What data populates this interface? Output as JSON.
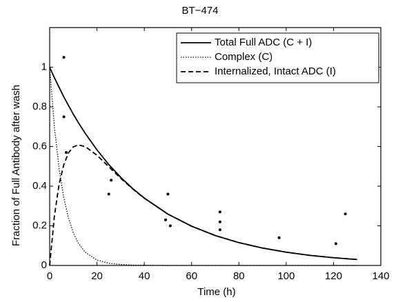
{
  "chart_data": {
    "type": "line",
    "title": "BT−474",
    "xlabel": "Time (h)",
    "ylabel": "Fraction of Full Antibody after wash",
    "x": [
      0,
      2,
      4,
      6,
      8,
      10,
      12,
      15,
      20,
      25,
      30,
      35,
      40,
      50,
      60,
      70,
      80,
      90,
      100,
      110,
      120,
      130
    ],
    "series": [
      {
        "name": "Total Full ADC (C + I)",
        "color": "#000000",
        "style": "solid",
        "values": [
          1,
          0.947,
          0.898,
          0.85,
          0.806,
          0.763,
          0.723,
          0.667,
          0.583,
          0.509,
          0.445,
          0.389,
          0.34,
          0.259,
          0.198,
          0.151,
          0.115,
          0.088,
          0.067,
          0.051,
          0.039,
          0.03
        ]
      },
      {
        "name": "Complex (C)",
        "color": "#000000",
        "style": "dotted",
        "values": [
          1,
          0.698,
          0.487,
          0.34,
          0.237,
          0.165,
          0.115,
          0.067,
          0.027,
          0.011,
          0.005,
          0.002,
          0.001,
          0,
          0,
          0,
          0,
          0,
          0,
          0,
          0,
          0
        ]
      },
      {
        "name": "Internalized, Intact ADC (I)",
        "color": "#000000",
        "style": "dashed",
        "values": [
          0,
          0.249,
          0.411,
          0.51,
          0.569,
          0.598,
          0.608,
          0.6,
          0.556,
          0.498,
          0.44,
          0.387,
          0.339,
          0.259,
          0.198,
          0.151,
          0.115,
          0.088,
          0.067,
          0.051,
          0.039,
          0.03
        ]
      }
    ],
    "scatter": {
      "color": "#000000",
      "x": [
        6,
        6,
        7,
        25,
        26,
        49,
        50,
        51,
        72,
        72,
        72,
        97,
        121,
        125
      ],
      "values": [
        1.05,
        0.75,
        0.57,
        0.36,
        0.43,
        0.23,
        0.36,
        0.2,
        0.27,
        0.22,
        0.18,
        0.14,
        0.11,
        0.26
      ]
    },
    "xlim": [
      0,
      140
    ],
    "ylim": [
      0,
      1.2
    ],
    "xticks": [
      0,
      20,
      40,
      60,
      80,
      100,
      120,
      140
    ],
    "yticks": [
      0,
      0.2,
      0.4,
      0.6,
      0.8,
      1
    ],
    "grid": false,
    "legend": "upper right"
  }
}
